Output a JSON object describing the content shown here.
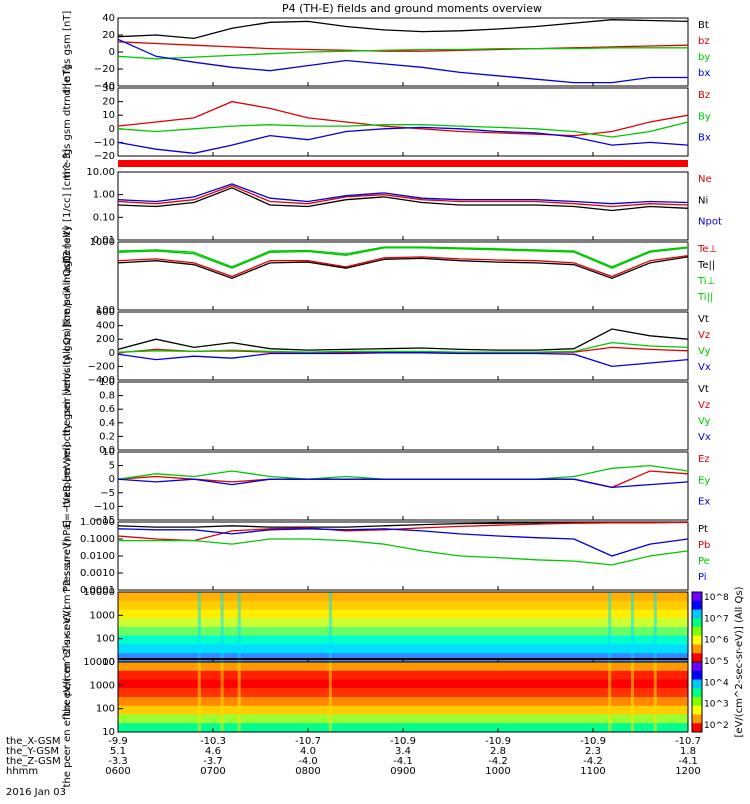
{
  "title": "P4 (TH-E) fields and ground moments overview",
  "date": "2016 Jan 03",
  "colorbar_label": "[eV/(cm^2-sec-sr-eV)] (All Qs)",
  "colorbar_ticks": [
    "10^8",
    "10^7",
    "10^6",
    "10^5",
    "10^4",
    "10^3",
    "10^2"
  ],
  "colorbar_colors": [
    "#6d00ff",
    "#0000ff",
    "#00c8ff",
    "#00ff80",
    "#80ff00",
    "#ffff00",
    "#ff9900",
    "#ff0000"
  ],
  "time_labels": [
    "0600",
    "0700",
    "0800",
    "0900",
    "1000",
    "1100",
    "1200"
  ],
  "ephemeris": [
    {
      "name": "the_X-GSM",
      "values": [
        "-9.9",
        "-10.3",
        "-10.7",
        "-10.9",
        "-10.9",
        "-10.9",
        "-10.7"
      ]
    },
    {
      "name": "the_Y-GSM",
      "values": [
        "5.1",
        "4.6",
        "4.0",
        "3.4",
        "2.8",
        "2.3",
        "1.8"
      ]
    },
    {
      "name": "the_Z-GSM",
      "values": [
        "-3.3",
        "-3.7",
        "-4.0",
        "-4.1",
        "-4.2",
        "-4.2",
        "-4.1"
      ]
    },
    {
      "name": "hhmm",
      "values": []
    }
  ],
  "chart_data": [
    {
      "type": "line",
      "id": "fgs_gsm",
      "ylabel": "the fgs gsm [nT]",
      "ylim": [
        -40,
        40
      ],
      "yticks": [
        "40",
        "20",
        "0",
        "−20",
        "−40"
      ],
      "series": [
        {
          "name": "Bt",
          "color": "#000000",
          "values": [
            18,
            20,
            16,
            28,
            35,
            36,
            30,
            26,
            24,
            25,
            27,
            30,
            34,
            38,
            37,
            36
          ]
        },
        {
          "name": "bz",
          "color": "#e00000",
          "values": [
            12,
            10,
            8,
            6,
            4,
            3,
            2,
            1,
            1,
            2,
            3,
            4,
            5,
            6,
            7,
            8
          ]
        },
        {
          "name": "by",
          "color": "#00c800",
          "values": [
            -5,
            -8,
            -6,
            -4,
            -2,
            0,
            1,
            2,
            3,
            3,
            4,
            4,
            4,
            5,
            5,
            5
          ]
        },
        {
          "name": "bx",
          "color": "#0000e0",
          "values": [
            15,
            -5,
            -12,
            -18,
            -22,
            -16,
            -10,
            -14,
            -18,
            -24,
            -28,
            -32,
            -36,
            -36,
            -30,
            -30
          ]
        }
      ]
    },
    {
      "type": "line",
      "id": "fgs_gsm_dtrnd",
      "ylabel": "the fgs gsm dtrnd [nT]",
      "ylim": [
        -20,
        30
      ],
      "yticks": [
        "30",
        "20",
        "10",
        "0",
        "−10",
        "−20"
      ],
      "series": [
        {
          "name": "Bz",
          "color": "#e00000",
          "values": [
            2,
            5,
            8,
            20,
            15,
            8,
            5,
            2,
            0,
            -2,
            -3,
            -4,
            -5,
            -2,
            5,
            10
          ]
        },
        {
          "name": "By",
          "color": "#00c800",
          "values": [
            0,
            -2,
            0,
            2,
            3,
            2,
            2,
            3,
            3,
            2,
            1,
            0,
            -2,
            -6,
            -2,
            5
          ]
        },
        {
          "name": "Bx",
          "color": "#0000e0",
          "values": [
            -10,
            -15,
            -18,
            -12,
            -5,
            -8,
            -2,
            0,
            1,
            0,
            -2,
            -3,
            -6,
            -12,
            -10,
            -12
          ]
        }
      ]
    },
    {
      "type": "line",
      "id": "density",
      "ylabel": "Density [1/cc] [cm^-3]",
      "ylim": [
        0.01,
        10
      ],
      "yscale": "log",
      "yticks": [
        "10.00",
        "1.00",
        "0.10",
        "0.01"
      ],
      "series": [
        {
          "name": "Ne",
          "color": "#e00000",
          "values": [
            0.5,
            0.4,
            0.6,
            2.5,
            0.5,
            0.4,
            0.8,
            1.0,
            0.6,
            0.5,
            0.5,
            0.5,
            0.4,
            0.3,
            0.4,
            0.35
          ]
        },
        {
          "name": "Ni",
          "color": "#000000",
          "values": [
            0.35,
            0.3,
            0.45,
            2.0,
            0.35,
            0.3,
            0.6,
            0.8,
            0.45,
            0.35,
            0.35,
            0.35,
            0.3,
            0.2,
            0.3,
            0.25
          ]
        },
        {
          "name": "Npot",
          "color": "#0000e0",
          "values": [
            0.6,
            0.5,
            0.8,
            3.0,
            0.7,
            0.5,
            0.9,
            1.2,
            0.7,
            0.6,
            0.6,
            0.6,
            0.5,
            0.4,
            0.5,
            0.45
          ]
        }
      ]
    },
    {
      "type": "line",
      "id": "temperature",
      "ylabel": "the peir magt3 [eV]",
      "ylim": [
        10,
        10000
      ],
      "yscale": "log",
      "yticks": [
        "1000",
        "100"
      ],
      "series": [
        {
          "name": "Te⊥",
          "color": "#e00000",
          "values": [
            1500,
            1800,
            1200,
            300,
            1500,
            1500,
            800,
            2000,
            2200,
            1800,
            1600,
            1500,
            1200,
            300,
            1500,
            2500
          ]
        },
        {
          "name": "Te||",
          "color": "#000000",
          "values": [
            1200,
            1500,
            1000,
            250,
            1200,
            1300,
            700,
            1700,
            1900,
            1500,
            1300,
            1200,
            1000,
            250,
            1200,
            2200
          ]
        },
        {
          "name": "Ti⊥",
          "color": "#00c800",
          "values": [
            4000,
            4500,
            3500,
            800,
            4000,
            4200,
            3000,
            6000,
            6000,
            5500,
            5000,
            4500,
            4000,
            800,
            4000,
            6000
          ]
        },
        {
          "name": "Ti||",
          "color": "#00c800",
          "values": [
            3500,
            4000,
            3000,
            700,
            3500,
            3800,
            2600,
            5500,
            5500,
            5000,
            4500,
            4000,
            3600,
            700,
            3600,
            5500
          ]
        }
      ]
    },
    {
      "type": "line",
      "id": "peir_velocity",
      "ylabel": "the peir velocity gsm [km/s (All Qs)]",
      "ylim": [
        -400,
        600
      ],
      "yticks": [
        "600",
        "400",
        "200",
        "0",
        "−200",
        "−400"
      ],
      "series": [
        {
          "name": "Vt",
          "color": "#000000",
          "values": [
            50,
            200,
            80,
            150,
            60,
            40,
            50,
            60,
            70,
            50,
            40,
            40,
            60,
            350,
            250,
            200
          ]
        },
        {
          "name": "Vz",
          "color": "#e00000",
          "values": [
            0,
            50,
            20,
            30,
            10,
            5,
            5,
            10,
            10,
            5,
            5,
            5,
            10,
            80,
            50,
            30
          ]
        },
        {
          "name": "Vy",
          "color": "#00c800",
          "values": [
            10,
            30,
            20,
            40,
            20,
            10,
            20,
            20,
            20,
            10,
            10,
            10,
            20,
            150,
            100,
            80
          ]
        },
        {
          "name": "Vx",
          "color": "#0000e0",
          "values": [
            -20,
            -100,
            -50,
            -80,
            -10,
            -10,
            -10,
            0,
            0,
            -10,
            -10,
            -10,
            -20,
            -200,
            -150,
            -100
          ]
        }
      ]
    },
    {
      "type": "line",
      "id": "peer_velocity",
      "ylabel": "the peer velocity gsm [km/s (All Qs)]",
      "ylim": [
        0,
        1
      ],
      "yticks": [
        "1.0",
        "0.8",
        "0.6",
        "0.4",
        "0.2",
        "0.0"
      ],
      "series": [
        {
          "name": "Vt",
          "color": "#000000",
          "values": []
        },
        {
          "name": "Vz",
          "color": "#e00000",
          "values": []
        },
        {
          "name": "Vy",
          "color": "#00c800",
          "values": []
        },
        {
          "name": "Vx",
          "color": "#0000e0",
          "values": []
        }
      ]
    },
    {
      "type": "line",
      "id": "efield",
      "ylabel": "E=−VxB [mV/m]",
      "ylim": [
        -15,
        10
      ],
      "yticks": [
        "10",
        "5",
        "0",
        "−5",
        "−10",
        "−15"
      ],
      "series": [
        {
          "name": "Ez",
          "color": "#e00000",
          "values": [
            0,
            1,
            0,
            -1,
            0,
            0,
            0,
            0,
            0,
            0,
            0,
            0,
            0,
            -3,
            3,
            2
          ]
        },
        {
          "name": "Ey",
          "color": "#00c800",
          "values": [
            0,
            2,
            1,
            3,
            1,
            0,
            1,
            0,
            0,
            0,
            0,
            0,
            1,
            4,
            5,
            3
          ]
        },
        {
          "name": "Ex",
          "color": "#0000e0",
          "values": [
            0,
            -1,
            0,
            -2,
            0,
            0,
            0,
            0,
            0,
            0,
            0,
            0,
            0,
            -3,
            -2,
            -1
          ]
        }
      ]
    },
    {
      "type": "line",
      "id": "pressure",
      "ylabel": "Pressure [nPa]",
      "ylim": [
        0.0001,
        1
      ],
      "yscale": "log",
      "yticks": [
        "1.0000",
        "0.1000",
        "0.0100",
        "0.0010",
        "0.0001"
      ],
      "series": [
        {
          "name": "Pt",
          "color": "#000000",
          "values": [
            0.6,
            0.5,
            0.5,
            0.6,
            0.5,
            0.5,
            0.5,
            0.6,
            0.7,
            0.8,
            0.85,
            0.9,
            0.95,
            0.95,
            0.95,
            1.0
          ]
        },
        {
          "name": "Pb",
          "color": "#e00000",
          "values": [
            0.15,
            0.1,
            0.08,
            0.3,
            0.4,
            0.45,
            0.3,
            0.35,
            0.45,
            0.55,
            0.65,
            0.75,
            0.85,
            0.9,
            0.9,
            0.95
          ]
        },
        {
          "name": "Pe",
          "color": "#00c800",
          "values": [
            0.08,
            0.08,
            0.08,
            0.05,
            0.1,
            0.1,
            0.08,
            0.05,
            0.02,
            0.01,
            0.008,
            0.006,
            0.005,
            0.003,
            0.01,
            0.02
          ]
        },
        {
          "name": "Pi",
          "color": "#0000e0",
          "values": [
            0.4,
            0.35,
            0.35,
            0.2,
            0.35,
            0.4,
            0.35,
            0.4,
            0.3,
            0.2,
            0.15,
            0.12,
            0.1,
            0.01,
            0.05,
            0.1
          ]
        }
      ]
    },
    {
      "type": "heatmap",
      "id": "peir_en_eflux",
      "ylabel": "the peir en eflux eV/(cm^2-s-sr-eV)",
      "ylim": [
        5,
        30000
      ],
      "yscale": "log",
      "yticks": [
        "10000",
        "1000",
        "100",
        "10"
      ]
    },
    {
      "type": "heatmap",
      "id": "peer_en_eflux",
      "ylabel": "the peer en eflux eV/(cm^2-s-sr-eV)",
      "ylim": [
        5,
        30000
      ],
      "yscale": "log",
      "yticks": [
        "10000",
        "1000",
        "100",
        "10"
      ]
    }
  ]
}
